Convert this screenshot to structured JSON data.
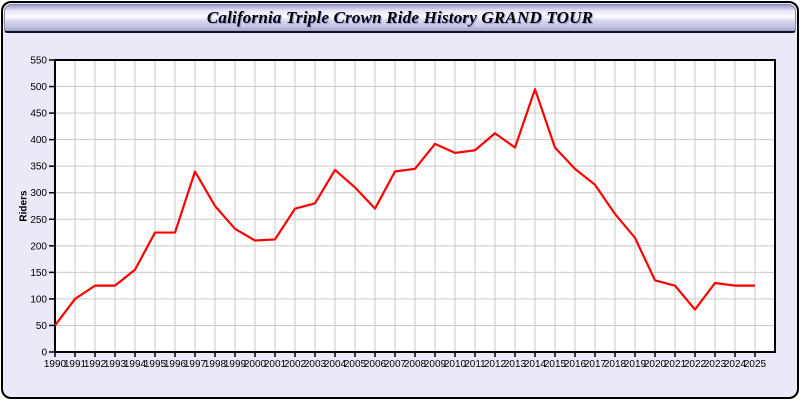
{
  "header": {
    "title": "California Triple Crown Ride History GRAND TOUR"
  },
  "colors": {
    "border": "#000000",
    "panel_bg": "#e9e9f8",
    "plot_bg": "#ffffff",
    "grid": "#c9c9c9",
    "axis": "#000000",
    "line": "#ff0000",
    "titlebar_top": "#9e9ec6",
    "titlebar_highlight": "#fdfdff",
    "titlebar_bottom": "#9e9ec6"
  },
  "chart_data": {
    "type": "line",
    "title": "California Triple Crown Ride History GRAND TOUR",
    "xlabel": "",
    "ylabel": "Riders",
    "grid": true,
    "legend_position": "none",
    "ylim": [
      0,
      550
    ],
    "ytick_step": 50,
    "yticks": [
      0,
      50,
      100,
      150,
      200,
      250,
      300,
      350,
      400,
      450,
      500,
      550
    ],
    "x": [
      1990,
      1991,
      1992,
      1993,
      1994,
      1995,
      1996,
      1997,
      1998,
      1999,
      2000,
      2001,
      2002,
      2003,
      2004,
      2005,
      2006,
      2007,
      2008,
      2009,
      2010,
      2011,
      2012,
      2013,
      2014,
      2015,
      2016,
      2017,
      2018,
      2019,
      2020,
      2021,
      2022,
      2023,
      2024,
      2025
    ],
    "series": [
      {
        "name": "Riders",
        "color": "#ff0000",
        "values": [
          50,
          100,
          125,
          125,
          155,
          225,
          225,
          340,
          275,
          232,
          210,
          212,
          270,
          280,
          343,
          310,
          270,
          340,
          345,
          392,
          375,
          380,
          412,
          385,
          495,
          385,
          345,
          315,
          260,
          215,
          135,
          125,
          80,
          130,
          125,
          125
        ]
      }
    ]
  }
}
